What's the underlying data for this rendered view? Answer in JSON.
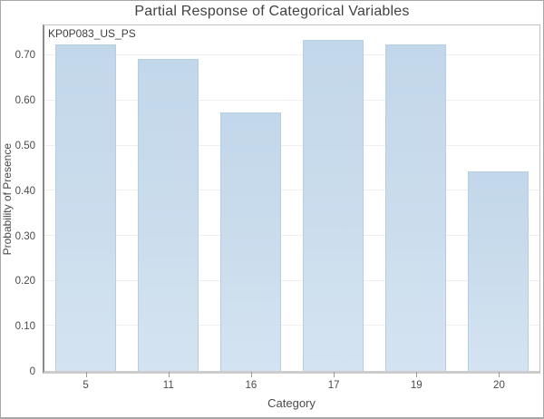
{
  "chart_data": {
    "type": "bar",
    "title": "Partial Response of Categorical Variables",
    "series_label": "KP0P083_US_PS",
    "categories": [
      "5",
      "11",
      "16",
      "17",
      "19",
      "20"
    ],
    "values": [
      0.724,
      0.692,
      0.573,
      0.734,
      0.724,
      0.442
    ],
    "xlabel": "Category",
    "ylabel": "Probability of Presence",
    "ylim": [
      0,
      0.767
    ],
    "yticks": [
      {
        "label": "0",
        "value": 0.0
      },
      {
        "label": "0.10",
        "value": 0.1
      },
      {
        "label": "0.20",
        "value": 0.2
      },
      {
        "label": "0.30",
        "value": 0.3
      },
      {
        "label": "0.40",
        "value": 0.4
      },
      {
        "label": "0.50",
        "value": 0.5
      },
      {
        "label": "0.60",
        "value": 0.6
      },
      {
        "label": "0.70",
        "value": 0.7
      }
    ],
    "grid": "horizontal-only",
    "legend_position": "none",
    "colors": {
      "bar_fill": "#c8dcec",
      "bar_border": "#b5cee3",
      "gridline": "#efefef",
      "axis_line": "#8a8a8a",
      "baseline": "#cccccc",
      "text": "#4a4a4a",
      "title_text": "#424242"
    }
  }
}
